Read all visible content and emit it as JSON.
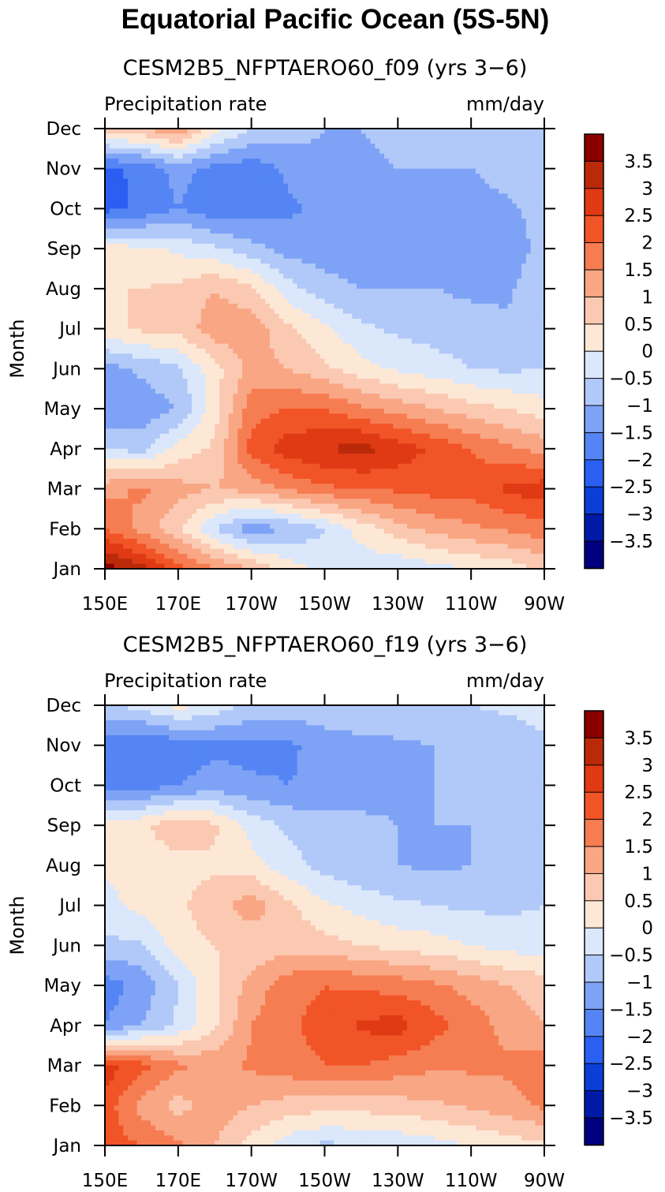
{
  "title": "Equatorial Pacific Ocean (5S-5N)",
  "chart_data": [
    {
      "type": "heatmap",
      "subtitle": "CESM2B5_NFPTAERO60_f09 (yrs 3−6)",
      "left_label": "Precipitation rate",
      "right_label": "mm/day",
      "ylabel": "Month",
      "x_ticks": [
        "150E",
        "170E",
        "170W",
        "150W",
        "130W",
        "110W",
        "90W"
      ],
      "y_ticks": [
        "Jan",
        "Feb",
        "Mar",
        "Apr",
        "May",
        "Jun",
        "Jul",
        "Aug",
        "Sep",
        "Oct",
        "Nov",
        "Dec"
      ],
      "x_values_lon_east": [
        150,
        160,
        170,
        180,
        190,
        200,
        210,
        220,
        230,
        240,
        250,
        260,
        270
      ],
      "levels": [
        -3.5,
        -3,
        -2.5,
        -2,
        -1.5,
        -1,
        -0.5,
        0,
        0.5,
        1,
        1.5,
        2,
        2.5,
        3,
        3.5
      ],
      "colorbar_labels": [
        "3.5",
        "3",
        "2.5",
        "2",
        "1.5",
        "1",
        "0.5",
        "0",
        "−0.5",
        "−1",
        "−1.5",
        "−2",
        "−2.5",
        "−3",
        "−3.5"
      ],
      "values": [
        [
          3.8,
          3.2,
          2.2,
          1.5,
          1.0,
          0.3,
          -0.2,
          -0.3,
          -0.4,
          -0.2,
          0.0,
          0.2,
          0.6
        ],
        [
          2.0,
          1.3,
          0.6,
          -0.5,
          -1.3,
          -1.0,
          -0.5,
          0.2,
          0.8,
          1.2,
          1.4,
          1.6,
          1.8
        ],
        [
          1.3,
          1.6,
          1.2,
          1.0,
          1.2,
          1.6,
          1.9,
          2.0,
          2.1,
          2.2,
          2.2,
          2.6,
          2.8
        ],
        [
          -0.5,
          -0.7,
          0.2,
          0.6,
          2.2,
          2.8,
          3.0,
          3.2,
          2.8,
          2.4,
          2.0,
          1.6,
          1.3
        ],
        [
          -1.5,
          -1.3,
          -1.0,
          0.3,
          1.8,
          2.0,
          2.0,
          1.6,
          1.3,
          1.0,
          0.7,
          0.5,
          0.2
        ],
        [
          -1.2,
          -0.9,
          -0.6,
          0.3,
          1.2,
          1.0,
          0.6,
          0.2,
          -0.1,
          -0.3,
          -0.5,
          -0.6,
          -0.5
        ],
        [
          0.3,
          0.6,
          0.7,
          1.3,
          1.3,
          0.6,
          0.1,
          -0.4,
          -0.6,
          -0.7,
          -0.8,
          -0.9,
          -0.5
        ],
        [
          0.5,
          0.5,
          0.6,
          1.0,
          0.6,
          -0.3,
          -0.8,
          -1.0,
          -1.0,
          -1.0,
          -1.1,
          -1.1,
          -0.6
        ],
        [
          0.2,
          0.1,
          -0.1,
          -0.4,
          -0.8,
          -1.2,
          -1.3,
          -1.3,
          -1.2,
          -1.2,
          -1.3,
          -1.3,
          -0.8
        ],
        [
          -2.2,
          -1.9,
          -1.5,
          -1.9,
          -1.8,
          -1.6,
          -1.4,
          -1.3,
          -1.3,
          -1.3,
          -1.2,
          -1.1,
          -0.8
        ],
        [
          -2.1,
          -1.9,
          -1.3,
          -1.7,
          -1.8,
          -1.4,
          -1.2,
          -1.1,
          -1.0,
          -1.0,
          -1.0,
          -0.8,
          -0.6
        ],
        [
          0.7,
          1.0,
          1.5,
          0.2,
          -0.5,
          -0.7,
          -1.0,
          -1.0,
          -0.9,
          -0.8,
          -0.8,
          -0.6,
          -0.5
        ]
      ]
    },
    {
      "type": "heatmap",
      "subtitle": "CESM2B5_NFPTAERO60_f19 (yrs 3−6)",
      "left_label": "Precipitation rate",
      "right_label": "mm/day",
      "ylabel": "Month",
      "x_ticks": [
        "150E",
        "170E",
        "170W",
        "150W",
        "130W",
        "110W",
        "90W"
      ],
      "y_ticks": [
        "Jan",
        "Feb",
        "Mar",
        "Apr",
        "May",
        "Jun",
        "Jul",
        "Aug",
        "Sep",
        "Oct",
        "Nov",
        "Dec"
      ],
      "x_values_lon_east": [
        150,
        160,
        170,
        180,
        190,
        200,
        210,
        220,
        230,
        240,
        250,
        260,
        270
      ],
      "levels": [
        -3.5,
        -3,
        -2.5,
        -2,
        -1.5,
        -1,
        -0.5,
        0,
        0.5,
        1,
        1.5,
        2,
        2.5,
        3,
        3.5
      ],
      "colorbar_labels": [
        "3.5",
        "3",
        "2.5",
        "2",
        "1.5",
        "1",
        "0.5",
        "0",
        "−0.5",
        "−1",
        "−1.5",
        "−2",
        "−2.5",
        "−3",
        "−3.5"
      ],
      "values": [
        [
          2.2,
          2.0,
          1.6,
          1.0,
          0.3,
          -0.3,
          -0.6,
          -0.5,
          -0.4,
          -0.2,
          0.0,
          0.2,
          0.4
        ],
        [
          2.3,
          1.3,
          0.8,
          1.3,
          1.0,
          0.8,
          0.7,
          0.7,
          0.8,
          0.9,
          1.1,
          1.3,
          1.6
        ],
        [
          2.8,
          2.2,
          1.6,
          1.3,
          1.6,
          1.8,
          2.0,
          2.0,
          1.8,
          1.6,
          1.6,
          1.6,
          1.8
        ],
        [
          -1.5,
          -1.0,
          -0.4,
          0.4,
          1.5,
          1.9,
          2.2,
          2.6,
          2.7,
          2.2,
          1.8,
          1.3,
          1.0
        ],
        [
          -1.8,
          -1.3,
          -0.5,
          0.4,
          1.2,
          1.8,
          2.0,
          1.9,
          1.8,
          1.6,
          1.3,
          1.0,
          0.8
        ],
        [
          -0.6,
          -0.6,
          0.3,
          0.5,
          0.6,
          0.8,
          0.7,
          0.5,
          0.3,
          0.2,
          0.0,
          -0.2,
          -0.3
        ],
        [
          -0.2,
          0.2,
          0.4,
          0.8,
          1.3,
          0.6,
          0.1,
          -0.2,
          -0.4,
          -0.5,
          -0.6,
          -0.6,
          -0.5
        ],
        [
          0.1,
          0.2,
          0.3,
          0.4,
          0.2,
          -0.3,
          -0.7,
          -0.9,
          -1.0,
          -1.1,
          -1.0,
          -0.9,
          -0.6
        ],
        [
          0.3,
          0.4,
          0.9,
          0.6,
          -0.2,
          -0.6,
          -0.8,
          -0.9,
          -1.0,
          -1.0,
          -1.0,
          -0.9,
          -0.6
        ],
        [
          -1.9,
          -1.8,
          -1.5,
          -1.3,
          -1.4,
          -1.5,
          -1.4,
          -1.2,
          -1.1,
          -1.0,
          -0.9,
          -0.8,
          -0.7
        ],
        [
          -1.8,
          -2.0,
          -1.8,
          -1.6,
          -1.7,
          -1.6,
          -1.3,
          -1.2,
          -1.1,
          -1.0,
          -0.9,
          -0.8,
          -0.6
        ],
        [
          -0.6,
          -0.3,
          0.2,
          -0.2,
          -0.6,
          -0.7,
          -0.6,
          -0.5,
          -0.5,
          -0.5,
          -0.5,
          -0.4,
          -0.3
        ]
      ]
    }
  ],
  "colors": {
    "palette": [
      "#00007f",
      "#001aa8",
      "#0b3ed6",
      "#2a5ff2",
      "#5585f4",
      "#7ea3f6",
      "#b1c9f9",
      "#dbe7fb",
      "#fde8d6",
      "#fbc9b2",
      "#f9a684",
      "#f67d52",
      "#f15427",
      "#df3a14",
      "#ba2a0a",
      "#8a0000"
    ],
    "line": "#000000"
  }
}
